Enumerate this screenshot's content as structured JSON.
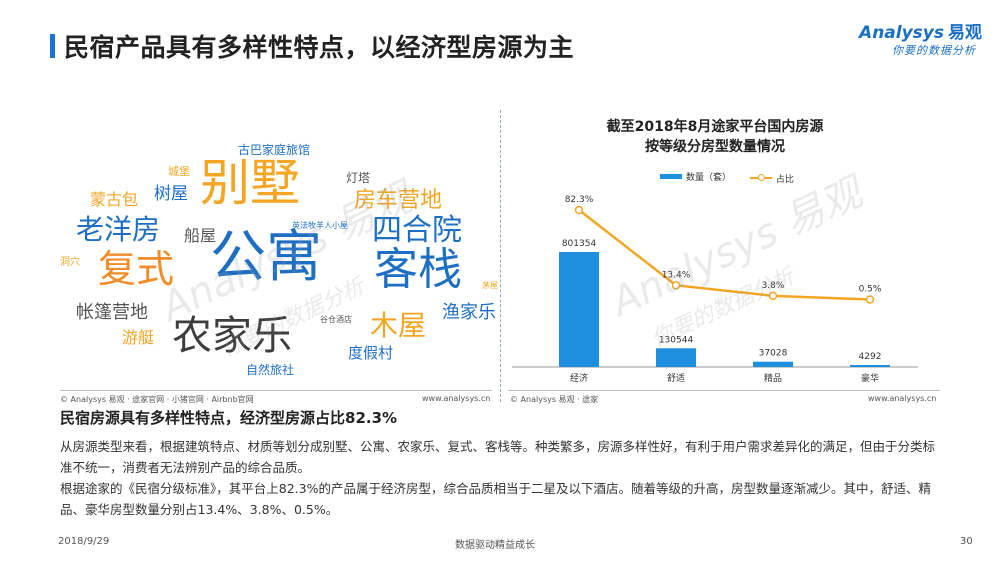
{
  "header": {
    "title": "民宿产品具有多样性特点，以经济型房源为主",
    "logo_main": "Analysys",
    "logo_cn": "易观",
    "logo_tagline": "你要的数据分析"
  },
  "word_cloud": {
    "words": [
      {
        "text": "别墅",
        "color": "#f4a623",
        "size": 50
      },
      {
        "text": "公寓",
        "color": "#1e6fc4",
        "size": 56
      },
      {
        "text": "农家乐",
        "color": "#3d3d3d",
        "size": 40
      },
      {
        "text": "客栈",
        "color": "#1e6fc4",
        "size": 44
      },
      {
        "text": "复式",
        "color": "#f28c28",
        "size": 38
      },
      {
        "text": "四合院",
        "color": "#1e6fc4",
        "size": 30
      },
      {
        "text": "老洋房",
        "color": "#1e6fc4",
        "size": 28
      },
      {
        "text": "木屋",
        "color": "#f4a623",
        "size": 28
      },
      {
        "text": "房车营地",
        "color": "#f4a623",
        "size": 22
      },
      {
        "text": "帐篷营地",
        "color": "#555555",
        "size": 18
      },
      {
        "text": "渔家乐",
        "color": "#1e6fc4",
        "size": 18
      },
      {
        "text": "树屋",
        "color": "#1e6fc4",
        "size": 17
      },
      {
        "text": "蒙古包",
        "color": "#f4a623",
        "size": 16
      },
      {
        "text": "船屋",
        "color": "#555555",
        "size": 16
      },
      {
        "text": "游艇",
        "color": "#f4a623",
        "size": 16
      },
      {
        "text": "度假村",
        "color": "#1e6fc4",
        "size": 15
      },
      {
        "text": "古巴家庭旅馆",
        "color": "#1e6fc4",
        "size": 12
      },
      {
        "text": "灯塔",
        "color": "#555555",
        "size": 12
      },
      {
        "text": "城堡",
        "color": "#f4a623",
        "size": 11
      },
      {
        "text": "自然旅社",
        "color": "#1e6fc4",
        "size": 12
      },
      {
        "text": "英法牧羊人小屋",
        "color": "#1e6fc4",
        "size": 8
      },
      {
        "text": "谷仓酒店",
        "color": "#555555",
        "size": 8
      },
      {
        "text": "茅屋",
        "color": "#f4a623",
        "size": 8
      },
      {
        "text": "洞穴",
        "color": "#f4a623",
        "size": 10
      }
    ],
    "source": "© Analysys 易观 · 途家官网 · 小猪官网 · Airbnb官网",
    "site": "www.analysys.cn"
  },
  "chart_source": "© Analysys 易观 · 途家",
  "chart_site": "www.analysys.cn",
  "watermark": {
    "main": "Analysys 易观",
    "sub": "你要的数据分析"
  },
  "chart_data": {
    "type": "bar",
    "title": "截至2018年8月途家平台国内房源按等级分房型数量情况",
    "title_lines": [
      "截至2018年8月途家平台国内房源",
      "按等级分房型数量情况"
    ],
    "categories": [
      "经济",
      "舒适",
      "精品",
      "豪华"
    ],
    "series": [
      {
        "name": "数量（套）",
        "type": "bar",
        "values": [
          801354,
          130544,
          37028,
          4292
        ],
        "labels": [
          "801354",
          "130544",
          "37028",
          "4292"
        ],
        "color": "#1f8fe0"
      },
      {
        "name": "占比",
        "type": "line",
        "values": [
          82.3,
          13.4,
          3.8,
          0.5
        ],
        "labels": [
          "82.3%",
          "13.4%",
          "3.8%",
          "0.5%"
        ],
        "color": "#f4a623"
      }
    ],
    "legend_position": "top",
    "grid": false
  },
  "summary": {
    "title": "民宿房源具有多样性特点，经济型房源占比82.3%",
    "paragraphs": [
      "从房源类型来看，根据建筑特点、材质等划分成别墅、公寓、农家乐、复式、客栈等。种类繁多，房源多样性好，有利于用户需求差异化的满足，但由于分类标准不统一，消费者无法辨别产品的综合品质。",
      "根据途家的《民宿分级标准》，其平台上82.3%的产品属于经济房型，综合品质相当于二星及以下酒店。随着等级的升高，房型数量逐渐减少。其中，舒适、精品、豪华房型数量分别占13.4%、3.8%、0.5%。"
    ]
  },
  "footer": {
    "date": "2018/9/29",
    "slogan": "数据驱动精益成长",
    "page": "30"
  }
}
